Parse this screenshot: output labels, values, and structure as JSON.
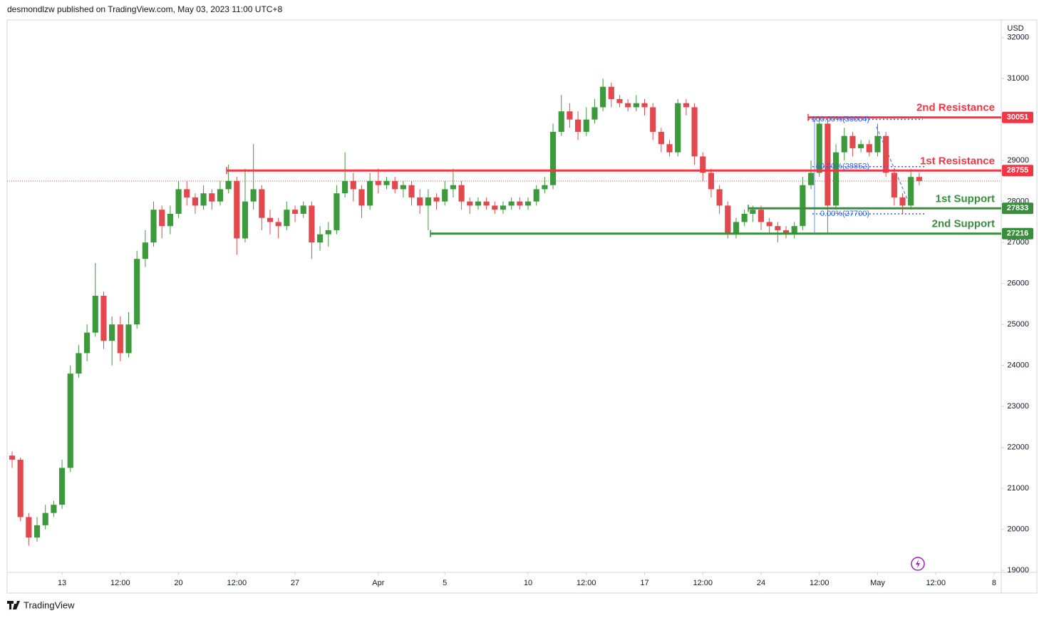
{
  "header": "desmondlzw published on TradingView.com, May 03, 2023 11:00 UTC+8",
  "footer": "TradingView",
  "chart_data": {
    "type": "candlestick",
    "currency": "USD",
    "up_color": "#3c9a3c",
    "down_color": "#e2484d",
    "grid": false,
    "ylim": [
      18950,
      32430
    ],
    "yticks": [
      19000,
      20000,
      21000,
      22000,
      23000,
      24000,
      25000,
      26000,
      27000,
      28000,
      29000,
      30000,
      31000,
      32000
    ],
    "xlim": [
      9.7,
      69.43
    ],
    "xticks": [
      13,
      {
        "value": 16.5,
        "label": "12:00"
      },
      20,
      {
        "value": 23.5,
        "label": "12:00"
      },
      27,
      {
        "value": 32,
        "label": "Apr"
      },
      {
        "value": 36,
        "label": "5"
      },
      {
        "value": 41,
        "label": "10"
      },
      {
        "value": 44.5,
        "label": "12:00"
      },
      {
        "value": 48,
        "label": "17"
      },
      {
        "value": 51.5,
        "label": "12:00"
      },
      {
        "value": 55,
        "label": "24"
      },
      {
        "value": 58.5,
        "label": "12:00"
      },
      {
        "value": 62,
        "label": "May"
      },
      {
        "value": 65.5,
        "label": "12:00"
      },
      {
        "value": 69,
        "label": "8"
      }
    ],
    "x": [
      10,
      10.5,
      11,
      11.5,
      12,
      12.5,
      13,
      13.5,
      14,
      14.5,
      15,
      15.5,
      16,
      16.5,
      17,
      17.5,
      18,
      18.5,
      19,
      19.5,
      20,
      20.5,
      21,
      21.5,
      22,
      22.5,
      23,
      23.5,
      24,
      24.5,
      25,
      25.5,
      26,
      26.5,
      27,
      27.5,
      28,
      28.5,
      29,
      29.5,
      30,
      30.5,
      31,
      31.5,
      32,
      32.5,
      33,
      33.5,
      34,
      34.5,
      35,
      35.5,
      36,
      36.5,
      37,
      37.5,
      38,
      38.5,
      39,
      39.5,
      40,
      40.5,
      41,
      41.5,
      42,
      42.5,
      43,
      43.5,
      44,
      44.5,
      45,
      45.5,
      46,
      46.5,
      47,
      47.5,
      48,
      48.5,
      49,
      49.5,
      50,
      50.5,
      51,
      51.5,
      52,
      52.5,
      53,
      53.5,
      54,
      54.5,
      55,
      55.5,
      56,
      56.5,
      57,
      57.5,
      58,
      58.5,
      59,
      59.5,
      60,
      60.5,
      61,
      61.5,
      62,
      62.5,
      63,
      63.5,
      64,
      64.5
    ],
    "open": [
      21800,
      21700,
      20300,
      19800,
      20100,
      20400,
      20600,
      21500,
      23800,
      24300,
      24800,
      25700,
      24600,
      25000,
      24300,
      25000,
      26600,
      27000,
      27800,
      27400,
      27700,
      28300,
      28100,
      27900,
      28200,
      28000,
      28300,
      28500,
      27100,
      28000,
      28300,
      27600,
      27500,
      27400,
      27800,
      27700,
      27900,
      27000,
      27200,
      27300,
      28200,
      28500,
      28300,
      27900,
      28500,
      28400,
      28500,
      28300,
      28400,
      28100,
      27900,
      28100,
      28000,
      28300,
      28400,
      28000,
      27900,
      28000,
      27900,
      27800,
      27900,
      28000,
      27900,
      28000,
      28300,
      28400,
      29700,
      30200,
      30000,
      29700,
      30000,
      30300,
      30800,
      30500,
      30400,
      30300,
      30400,
      30300,
      29700,
      29400,
      29200,
      30400,
      30300,
      29100,
      28700,
      28300,
      27900,
      27200,
      27500,
      27700,
      27800,
      27500,
      27400,
      27300,
      27200,
      27400,
      28400,
      28700,
      29900,
      27900,
      29200,
      29600,
      29300,
      29400,
      29200,
      29600,
      28700,
      28100,
      27900,
      28600
    ],
    "high": [
      21900,
      21750,
      20400,
      20300,
      20600,
      20700,
      21700,
      24000,
      24500,
      25000,
      26500,
      25800,
      25200,
      25200,
      25300,
      26800,
      27300,
      28000,
      27900,
      27900,
      28500,
      28500,
      28200,
      28400,
      28300,
      28500,
      28900,
      28600,
      28800,
      29400,
      28400,
      27800,
      27600,
      28000,
      27900,
      28000,
      28000,
      27400,
      27500,
      28400,
      29200,
      28700,
      28400,
      28700,
      28800,
      28600,
      28600,
      28500,
      28500,
      28300,
      28300,
      28200,
      28500,
      28800,
      28500,
      28100,
      28100,
      28100,
      28000,
      28000,
      28100,
      28100,
      28100,
      28400,
      28600,
      29900,
      30600,
      30400,
      30200,
      30300,
      30500,
      31000,
      30900,
      30600,
      30500,
      30600,
      30500,
      30400,
      29800,
      29500,
      30500,
      30500,
      30400,
      29200,
      28800,
      28400,
      28000,
      27600,
      27800,
      27900,
      27900,
      27600,
      27500,
      27400,
      27500,
      28600,
      29000,
      30000,
      30000,
      29400,
      29800,
      29700,
      29500,
      29500,
      29900,
      29700,
      28800,
      28200,
      28800,
      28700
    ],
    "low": [
      21500,
      20200,
      19600,
      19700,
      20000,
      20300,
      20500,
      21400,
      23700,
      24100,
      24700,
      24400,
      24000,
      24100,
      24200,
      24900,
      26400,
      26900,
      27100,
      27200,
      27600,
      27900,
      27700,
      27800,
      27800,
      27900,
      28200,
      26700,
      27000,
      27800,
      27300,
      27200,
      27100,
      27300,
      27500,
      27600,
      26600,
      26800,
      26900,
      27200,
      28100,
      28000,
      27600,
      27800,
      28200,
      28300,
      28200,
      28100,
      27900,
      27700,
      27300,
      27800,
      27900,
      28100,
      27800,
      27700,
      27800,
      27800,
      27700,
      27700,
      27800,
      27800,
      27800,
      27900,
      28200,
      28300,
      29600,
      29800,
      29500,
      29600,
      29900,
      30200,
      30300,
      30300,
      30200,
      30200,
      30100,
      29500,
      29200,
      29100,
      29100,
      30100,
      28900,
      28500,
      28100,
      27700,
      27100,
      27100,
      27400,
      27500,
      27300,
      27200,
      27000,
      27100,
      27100,
      27300,
      28300,
      28600,
      27200,
      27800,
      29000,
      29100,
      29200,
      29100,
      29100,
      28600,
      27900,
      27700,
      27800,
      28400
    ],
    "close": [
      21700,
      20300,
      19800,
      20100,
      20400,
      20600,
      21500,
      23800,
      24300,
      24800,
      25700,
      24600,
      25000,
      24300,
      25000,
      26600,
      27000,
      27800,
      27400,
      27700,
      28300,
      28100,
      27900,
      28200,
      28000,
      28300,
      28500,
      27100,
      28000,
      28300,
      27600,
      27500,
      27400,
      27800,
      27700,
      27900,
      27000,
      27200,
      27300,
      28200,
      28500,
      28300,
      27900,
      28500,
      28400,
      28500,
      28300,
      28400,
      28100,
      27900,
      28100,
      28000,
      28300,
      28400,
      28000,
      27900,
      28000,
      27900,
      27800,
      27900,
      28000,
      27900,
      28000,
      28300,
      28400,
      29700,
      30200,
      30000,
      29700,
      30000,
      30300,
      30800,
      30500,
      30400,
      30300,
      30400,
      30300,
      29700,
      29400,
      29200,
      30400,
      30300,
      29100,
      28700,
      28300,
      27900,
      27200,
      27500,
      27700,
      27800,
      27500,
      27400,
      27300,
      27200,
      27400,
      28400,
      28700,
      29900,
      27900,
      29200,
      29600,
      29300,
      29400,
      29200,
      29600,
      28700,
      28100,
      27900,
      28600,
      28500
    ],
    "levels": [
      {
        "name": "2nd Resistance",
        "value": 30051,
        "color": "#f23645"
      },
      {
        "name": "1st Resistance",
        "value": 28755,
        "color": "#f23645"
      },
      {
        "name": "1st Support",
        "value": 27833,
        "color": "#388e3c"
      },
      {
        "name": "2nd Support",
        "value": 27216,
        "color": "#388e3c"
      }
    ],
    "fib_levels": [
      30004,
      28852,
      27700
    ],
    "fib_labels": [
      "100.00%(30004)",
      "50.00%(28852)",
      "0.00%(27700)"
    ]
  }
}
